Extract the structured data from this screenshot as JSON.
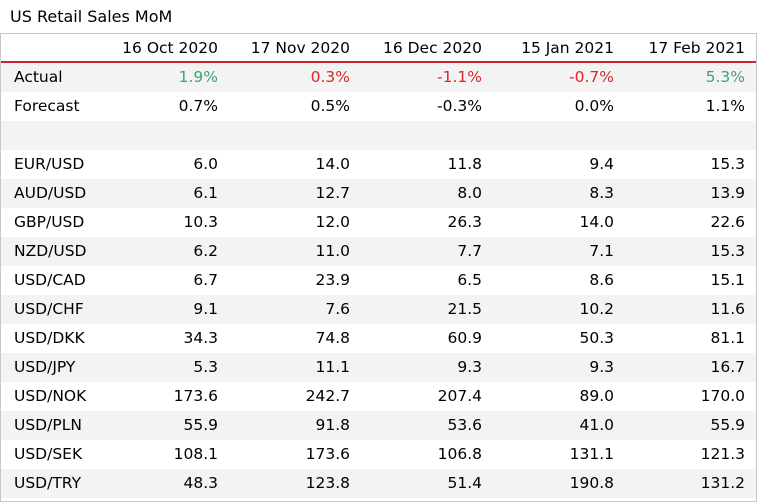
{
  "title": "US Retail Sales MoM",
  "colors": {
    "positive": "#3fa36e",
    "negative": "#d42a2a",
    "header_rule": "#c9252f",
    "stripe": "#f3f3f3"
  },
  "columns": [
    "16 Oct 2020",
    "17 Nov 2020",
    "16 Dec 2020",
    "15 Jan 2021",
    "17 Feb 2021"
  ],
  "actual": {
    "label": "Actual",
    "values": [
      "1.9%",
      "0.3%",
      "-1.1%",
      "-0.7%",
      "5.3%"
    ],
    "tones": [
      "green",
      "red",
      "red",
      "red",
      "green"
    ]
  },
  "forecast": {
    "label": "Forecast",
    "values": [
      "0.7%",
      "0.5%",
      "-0.3%",
      "0.0%",
      "1.1%"
    ]
  },
  "rows": [
    {
      "pair": "EUR/USD",
      "values": [
        "6.0",
        "14.0",
        "11.8",
        "9.4",
        "15.3"
      ]
    },
    {
      "pair": "AUD/USD",
      "values": [
        "6.1",
        "12.7",
        "8.0",
        "8.3",
        "13.9"
      ]
    },
    {
      "pair": "GBP/USD",
      "values": [
        "10.3",
        "12.0",
        "26.3",
        "14.0",
        "22.6"
      ]
    },
    {
      "pair": "NZD/USD",
      "values": [
        "6.2",
        "11.0",
        "7.7",
        "7.1",
        "15.3"
      ]
    },
    {
      "pair": "USD/CAD",
      "values": [
        "6.7",
        "23.9",
        "6.5",
        "8.6",
        "15.1"
      ]
    },
    {
      "pair": "USD/CHF",
      "values": [
        "9.1",
        "7.6",
        "21.5",
        "10.2",
        "11.6"
      ]
    },
    {
      "pair": "USD/DKK",
      "values": [
        "34.3",
        "74.8",
        "60.9",
        "50.3",
        "81.1"
      ]
    },
    {
      "pair": "USD/JPY",
      "values": [
        "5.3",
        "11.1",
        "9.3",
        "9.3",
        "16.7"
      ]
    },
    {
      "pair": "USD/NOK",
      "values": [
        "173.6",
        "242.7",
        "207.4",
        "89.0",
        "170.0"
      ]
    },
    {
      "pair": "USD/PLN",
      "values": [
        "55.9",
        "91.8",
        "53.6",
        "41.0",
        "55.9"
      ]
    },
    {
      "pair": "USD/SEK",
      "values": [
        "108.1",
        "173.6",
        "106.8",
        "131.1",
        "121.3"
      ]
    },
    {
      "pair": "USD/TRY",
      "values": [
        "48.3",
        "123.8",
        "51.4",
        "190.8",
        "131.2"
      ]
    }
  ]
}
